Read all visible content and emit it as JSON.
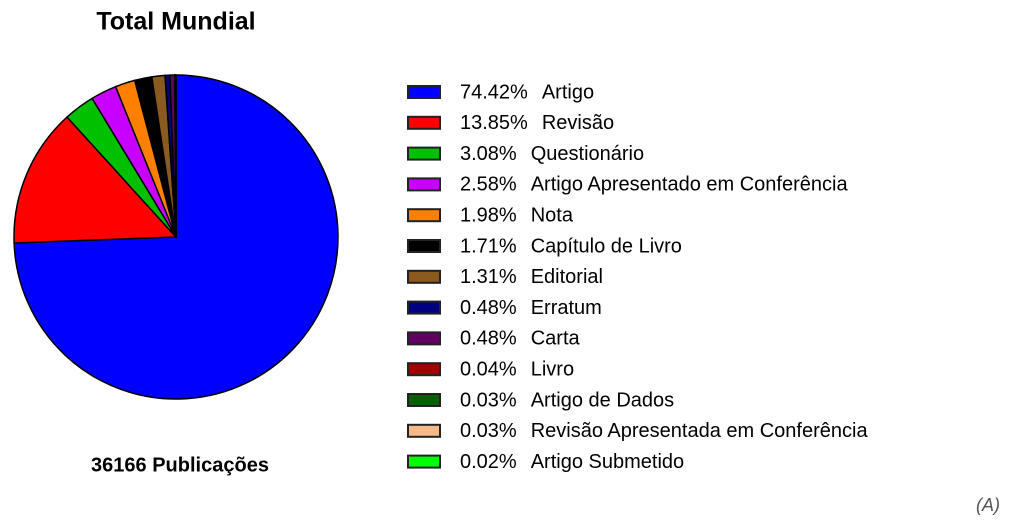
{
  "chart_data": {
    "type": "pie",
    "title": "Total Mundial",
    "categories": [
      "Artigo",
      "Revisão",
      "Questionário",
      "Artigo Apresentado em Conferência",
      "Nota",
      "Capítulo de Livro",
      "Editorial",
      "Erratum",
      "Carta",
      "Livro",
      "Artigo de Dados",
      "Revisão Apresentada em Conferência",
      "Artigo Submetido"
    ],
    "values": [
      74.42,
      13.85,
      3.08,
      2.58,
      1.98,
      1.71,
      1.31,
      0.48,
      0.48,
      0.04,
      0.03,
      0.03,
      0.02
    ],
    "value_labels": [
      "74.42%",
      "13.85%",
      "3.08%",
      "2.58%",
      "1.98%",
      "1.71%",
      "1.31%",
      "0.48%",
      "0.48%",
      "0.04%",
      "0.03%",
      "0.03%",
      "0.02%"
    ],
    "colors": [
      "#0000ff",
      "#ff0000",
      "#00c000",
      "#c800ff",
      "#ff8000",
      "#000000",
      "#8b5a1e",
      "#000080",
      "#600060",
      "#a00000",
      "#006000",
      "#f5b98a",
      "#00ff00"
    ],
    "caption": "36166 Publicações",
    "annotation": "(A)"
  }
}
